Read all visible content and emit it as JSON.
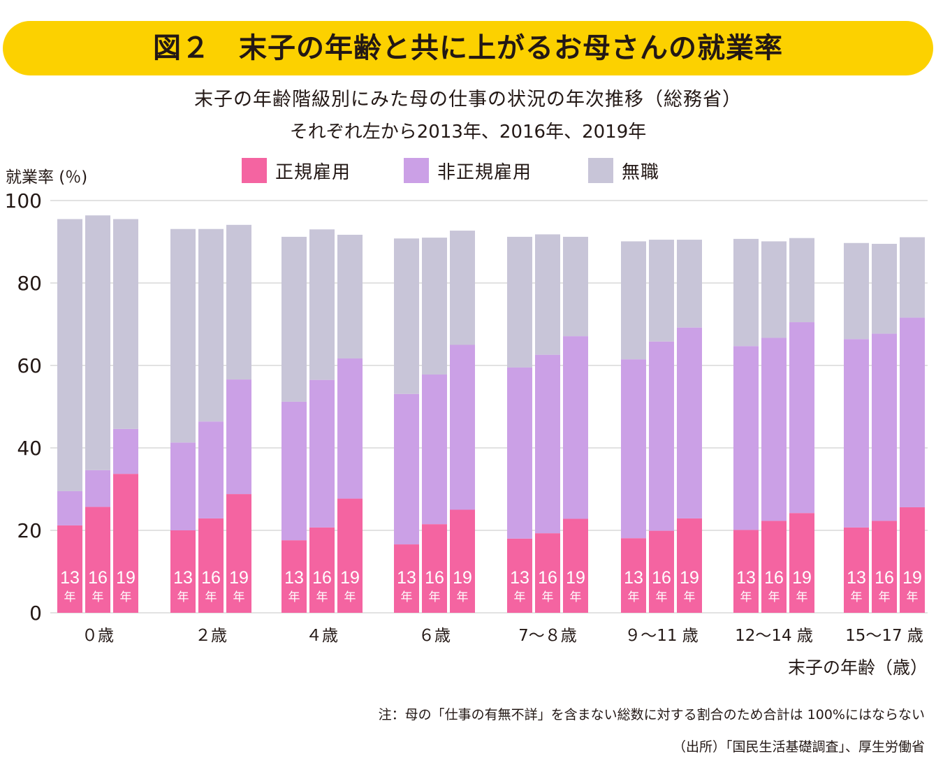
{
  "title": "図２　末子の年齢と共に上がるお母さんの就業率",
  "subtitle": "末子の年齢階級別にみた母の仕事の状況の年次推移（総務省）",
  "subtitle2": "それぞれ左から2013年、2016年、2019年",
  "y_axis_label": "就業率 (％)",
  "x_axis_label": "末子の年齢（歳）",
  "note": "注：母の「仕事の有無不詳」を含まない総数に対する割合のため合計は 100%にはならない",
  "source": "（出所）「国民生活基礎調査」、厚生労働省",
  "colors": {
    "regular": "#f464a1",
    "non_regular": "#cba0e6",
    "unemployed": "#c8c5d8",
    "banner": "#fcd100",
    "grid": "#d9d9d9"
  },
  "legend": [
    {
      "name": "正規雇用",
      "color": "#f464a1"
    },
    {
      "name": "非正規雇用",
      "color": "#cba0e6"
    },
    {
      "name": "無職",
      "color": "#c8c5d8"
    }
  ],
  "chart_data": {
    "type": "bar",
    "stacked": true,
    "title": "末子の年齢階級別にみた母の仕事の状況の年次推移（総務省）",
    "xlabel": "末子の年齢（歳）",
    "ylabel": "就業率 (％)",
    "ylim": [
      0,
      100
    ],
    "yticks": [
      0,
      20,
      40,
      60,
      80,
      100
    ],
    "grid": true,
    "legend_position": "top",
    "categories": [
      "0歳",
      "2歳",
      "4歳",
      "6歳",
      "7〜8歳",
      "9〜11歳",
      "12〜14歳",
      "15〜17歳"
    ],
    "category_labels": [
      "０歳",
      "２歳",
      "４歳",
      "６歳",
      "7〜８歳",
      "９〜11 歳",
      "12〜14 歳",
      "15〜17 歳"
    ],
    "years": [
      "13",
      "16",
      "19"
    ],
    "year_suffix": "年",
    "series": [
      {
        "name": "正規雇用",
        "values": [
          [
            21.2,
            25.7,
            33.7
          ],
          [
            20.0,
            22.9,
            28.8
          ],
          [
            17.6,
            20.7,
            27.7
          ],
          [
            16.6,
            21.5,
            25.0
          ],
          [
            18.0,
            19.3,
            22.8
          ],
          [
            18.1,
            19.9,
            22.9
          ],
          [
            20.1,
            22.3,
            24.2
          ],
          [
            20.7,
            22.3,
            25.6
          ]
        ]
      },
      {
        "name": "非正規雇用",
        "values": [
          [
            8.3,
            8.9,
            10.9
          ],
          [
            21.3,
            23.5,
            27.8
          ],
          [
            33.6,
            35.8,
            34.0
          ],
          [
            36.5,
            36.3,
            40.0
          ],
          [
            41.5,
            43.3,
            44.3
          ],
          [
            43.4,
            45.9,
            46.3
          ],
          [
            44.6,
            44.4,
            46.3
          ],
          [
            45.7,
            45.4,
            46.0
          ]
        ]
      },
      {
        "name": "無職",
        "values": [
          [
            66.0,
            61.8,
            50.9
          ],
          [
            51.8,
            46.7,
            37.5
          ],
          [
            40.0,
            36.5,
            30.0
          ],
          [
            37.7,
            33.2,
            27.7
          ],
          [
            31.7,
            29.2,
            24.1
          ],
          [
            28.6,
            24.7,
            21.3
          ],
          [
            26.0,
            23.4,
            20.4
          ],
          [
            23.3,
            21.8,
            19.5
          ]
        ]
      }
    ]
  }
}
